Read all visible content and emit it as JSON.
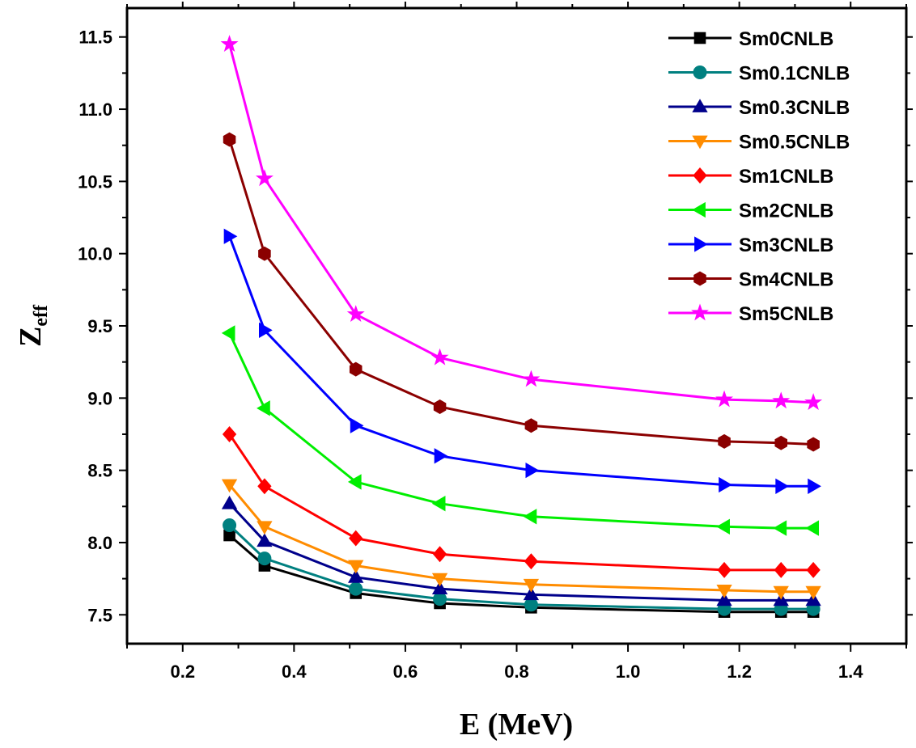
{
  "chart_data": {
    "type": "line",
    "title": "",
    "xlabel": "E (MeV)",
    "ylabel_main": "Z",
    "ylabel_sub": "eff",
    "xlim": [
      0.1,
      1.5
    ],
    "ylim": [
      7.3,
      11.7
    ],
    "xticks": [
      0.2,
      0.4,
      0.6,
      0.8,
      1.0,
      1.2,
      1.4
    ],
    "xtick_labels": [
      "0.2",
      "0.4",
      "0.6",
      "0.8",
      "1.0",
      "1.2",
      "1.4"
    ],
    "yticks": [
      7.5,
      8.0,
      8.5,
      9.0,
      9.5,
      10.0,
      10.5,
      11.0,
      11.5
    ],
    "ytick_labels": [
      "7.5",
      "8.0",
      "8.5",
      "9.0",
      "9.5",
      "10.0",
      "10.5",
      "11.0",
      "11.5"
    ],
    "legend_position": "top-right",
    "grid": false,
    "x": [
      0.284,
      0.347,
      0.511,
      0.662,
      0.826,
      1.173,
      1.275,
      1.333
    ],
    "series": [
      {
        "name": "Sm0CNLB",
        "color": "#000000",
        "marker": "square",
        "values": [
          8.05,
          7.84,
          7.65,
          7.58,
          7.55,
          7.52,
          7.52,
          7.52
        ]
      },
      {
        "name": "Sm0.1CNLB",
        "color": "#008080",
        "marker": "circle",
        "values": [
          8.12,
          7.89,
          7.68,
          7.61,
          7.57,
          7.54,
          7.54,
          7.54
        ]
      },
      {
        "name": "Sm0.3CNLB",
        "color": "#00008B",
        "marker": "triangle-up",
        "values": [
          8.27,
          8.01,
          7.76,
          7.68,
          7.64,
          7.6,
          7.6,
          7.6
        ]
      },
      {
        "name": "Sm0.5CNLB",
        "color": "#FF8C00",
        "marker": "triangle-down",
        "values": [
          8.4,
          8.11,
          7.84,
          7.75,
          7.71,
          7.67,
          7.66,
          7.66
        ]
      },
      {
        "name": "Sm1CNLB",
        "color": "#FF0000",
        "marker": "diamond",
        "values": [
          8.75,
          8.39,
          8.03,
          7.92,
          7.87,
          7.81,
          7.81,
          7.81
        ]
      },
      {
        "name": "Sm2CNLB",
        "color": "#00EE00",
        "marker": "triangle-left",
        "values": [
          9.45,
          8.93,
          8.42,
          8.27,
          8.18,
          8.11,
          8.1,
          8.1
        ]
      },
      {
        "name": "Sm3CNLB",
        "color": "#0000FF",
        "marker": "triangle-right",
        "values": [
          10.12,
          9.47,
          8.81,
          8.6,
          8.5,
          8.4,
          8.39,
          8.39
        ]
      },
      {
        "name": "Sm4CNLB",
        "color": "#8B0000",
        "marker": "hexagon",
        "values": [
          10.79,
          10.0,
          9.2,
          8.94,
          8.81,
          8.7,
          8.69,
          8.68
        ]
      },
      {
        "name": "Sm5CNLB",
        "color": "#FF00FF",
        "marker": "star",
        "values": [
          11.45,
          10.52,
          9.58,
          9.28,
          9.13,
          8.99,
          8.98,
          8.97
        ]
      }
    ]
  }
}
